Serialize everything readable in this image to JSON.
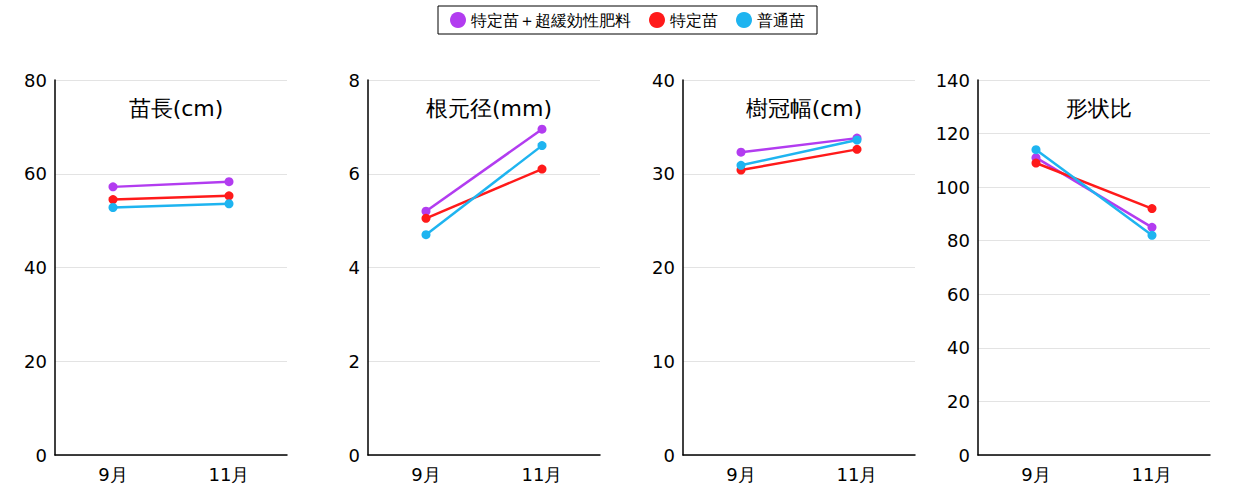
{
  "chart_data": [
    {
      "type": "line",
      "title": "苗長(cm)",
      "categories": [
        "9月",
        "11月"
      ],
      "series": [
        {
          "name": "特定苗＋超緩効性肥料",
          "color": "#b23cf0",
          "values": [
            57.2,
            58.3
          ],
          "marker": "circle"
        },
        {
          "name": "特定苗",
          "color": "#ff1a1a",
          "values": [
            54.5,
            55.3
          ],
          "marker": "circle"
        },
        {
          "name": "普通苗",
          "color": "#1eb4f0",
          "values": [
            52.8,
            53.6
          ],
          "marker": "circle"
        }
      ],
      "ylim": [
        0,
        80
      ],
      "yticks": [
        0,
        20,
        40,
        60,
        80
      ],
      "grid": true,
      "legend": "top"
    },
    {
      "type": "line",
      "title": "根元径(mm)",
      "categories": [
        "9月",
        "11月"
      ],
      "series": [
        {
          "name": "特定苗＋超緩効性肥料",
          "color": "#b23cf0",
          "values": [
            5.2,
            6.95
          ],
          "marker": "circle"
        },
        {
          "name": "特定苗",
          "color": "#ff1a1a",
          "values": [
            5.05,
            6.1
          ],
          "marker": "circle"
        },
        {
          "name": "普通苗",
          "color": "#1eb4f0",
          "values": [
            4.7,
            6.6
          ],
          "marker": "circle"
        }
      ],
      "ylim": [
        0,
        8
      ],
      "yticks": [
        0,
        2,
        4,
        6,
        8
      ],
      "grid": true,
      "legend": "top"
    },
    {
      "type": "line",
      "title": "樹冠幅(cm)",
      "categories": [
        "9月",
        "11月"
      ],
      "series": [
        {
          "name": "特定苗＋超緩効性肥料",
          "color": "#b23cf0",
          "values": [
            32.3,
            33.8
          ],
          "marker": "circle"
        },
        {
          "name": "特定苗",
          "color": "#ff1a1a",
          "values": [
            30.4,
            32.6
          ],
          "marker": "circle"
        },
        {
          "name": "普通苗",
          "color": "#1eb4f0",
          "values": [
            30.9,
            33.6
          ],
          "marker": "circle"
        }
      ],
      "ylim": [
        0,
        40
      ],
      "yticks": [
        0,
        10,
        20,
        30,
        40
      ],
      "grid": true,
      "legend": "top"
    },
    {
      "type": "line",
      "title": "形状比",
      "categories": [
        "9月",
        "11月"
      ],
      "series": [
        {
          "name": "特定苗＋超緩効性肥料",
          "color": "#b23cf0",
          "values": [
            111,
            85
          ],
          "marker": "circle"
        },
        {
          "name": "特定苗",
          "color": "#ff1a1a",
          "values": [
            109,
            92
          ],
          "marker": "circle"
        },
        {
          "name": "普通苗",
          "color": "#1eb4f0",
          "values": [
            114,
            82
          ],
          "marker": "circle"
        }
      ],
      "ylim": [
        0,
        140
      ],
      "yticks": [
        0,
        20,
        40,
        60,
        80,
        100,
        120,
        140
      ],
      "grid": true,
      "legend": "top"
    }
  ]
}
